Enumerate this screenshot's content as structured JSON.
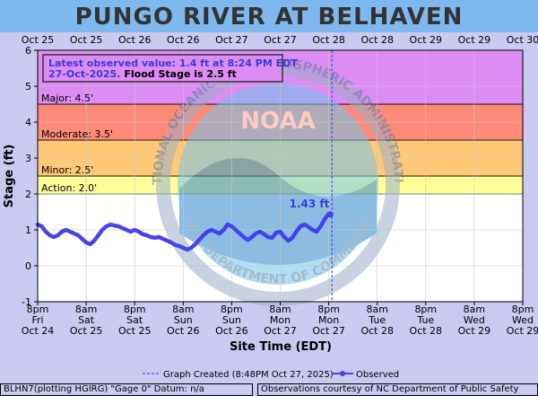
{
  "chart_data": {
    "type": "line",
    "title": "PUNGO RIVER AT BELHAVEN",
    "xlabel": "Site Time (EDT)",
    "ylabel": "Stage (ft)",
    "ylim": [
      -1,
      6
    ],
    "yticks": [
      -1,
      0,
      1,
      2,
      3,
      4,
      5,
      6
    ],
    "x_range": [
      "2025-10-24T20:00",
      "2025-10-29T20:00"
    ],
    "top_ticks": [
      "Oct 25",
      "Oct 25",
      "Oct 26",
      "Oct 26",
      "Oct 27",
      "Oct 27",
      "Oct 28",
      "Oct 28",
      "Oct 29",
      "Oct 29",
      "Oct 30"
    ],
    "bottom_ticks": [
      {
        "time": "8pm",
        "day": "Fri",
        "date": "Oct 24"
      },
      {
        "time": "8am",
        "day": "Sat",
        "date": "Oct 25"
      },
      {
        "time": "8pm",
        "day": "Sat",
        "date": "Oct 25"
      },
      {
        "time": "8am",
        "day": "Sun",
        "date": "Oct 26"
      },
      {
        "time": "8pm",
        "day": "Sun",
        "date": "Oct 26"
      },
      {
        "time": "8am",
        "day": "Mon",
        "date": "Oct 27"
      },
      {
        "time": "8pm",
        "day": "Mon",
        "date": "Oct 27"
      },
      {
        "time": "8am",
        "day": "Tue",
        "date": "Oct 28"
      },
      {
        "time": "8pm",
        "day": "Tue",
        "date": "Oct 28"
      },
      {
        "time": "8am",
        "day": "Wed",
        "date": "Oct 29"
      },
      {
        "time": "8pm",
        "day": "Wed",
        "date": "Oct 29"
      }
    ],
    "flood_categories": [
      {
        "label": "Action: 2.0'",
        "from": 2.0,
        "to": 2.5,
        "color": "#ffff99"
      },
      {
        "label": "Minor: 2.5'",
        "from": 2.5,
        "to": 3.5,
        "color": "#ffc877"
      },
      {
        "label": "Moderate: 3.5'",
        "from": 3.5,
        "to": 4.5,
        "color": "#ff8a7a"
      },
      {
        "label": "Major: 4.5'",
        "from": 4.5,
        "to": 6.0,
        "color": "#dd8cf4"
      }
    ],
    "below_action_color": "#ffffff",
    "series": [
      {
        "name": "Observed",
        "color": "#4444ee",
        "points": [
          [
            "2025-10-24T20:00",
            1.15
          ],
          [
            "2025-10-24T21:00",
            1.1
          ],
          [
            "2025-10-24T22:00",
            0.95
          ],
          [
            "2025-10-24T23:00",
            0.85
          ],
          [
            "2025-10-25T00:00",
            0.8
          ],
          [
            "2025-10-25T01:00",
            0.85
          ],
          [
            "2025-10-25T02:00",
            0.95
          ],
          [
            "2025-10-25T03:00",
            1.0
          ],
          [
            "2025-10-25T04:00",
            0.95
          ],
          [
            "2025-10-25T05:00",
            0.9
          ],
          [
            "2025-10-25T06:00",
            0.85
          ],
          [
            "2025-10-25T07:00",
            0.75
          ],
          [
            "2025-10-25T08:00",
            0.65
          ],
          [
            "2025-10-25T09:00",
            0.6
          ],
          [
            "2025-10-25T10:00",
            0.7
          ],
          [
            "2025-10-25T11:00",
            0.85
          ],
          [
            "2025-10-25T12:00",
            1.0
          ],
          [
            "2025-10-25T13:00",
            1.1
          ],
          [
            "2025-10-25T14:00",
            1.15
          ],
          [
            "2025-10-25T15:00",
            1.12
          ],
          [
            "2025-10-25T16:00",
            1.1
          ],
          [
            "2025-10-25T17:00",
            1.05
          ],
          [
            "2025-10-25T18:00",
            1.0
          ],
          [
            "2025-10-25T19:00",
            0.95
          ],
          [
            "2025-10-25T20:00",
            1.0
          ],
          [
            "2025-10-25T21:00",
            0.95
          ],
          [
            "2025-10-25T22:00",
            0.88
          ],
          [
            "2025-10-25T23:00",
            0.85
          ],
          [
            "2025-10-26T00:00",
            0.8
          ],
          [
            "2025-10-26T01:00",
            0.78
          ],
          [
            "2025-10-26T02:00",
            0.8
          ],
          [
            "2025-10-26T03:00",
            0.75
          ],
          [
            "2025-10-26T04:00",
            0.7
          ],
          [
            "2025-10-26T05:00",
            0.65
          ],
          [
            "2025-10-26T06:00",
            0.58
          ],
          [
            "2025-10-26T07:00",
            0.55
          ],
          [
            "2025-10-26T08:00",
            0.5
          ],
          [
            "2025-10-26T09:00",
            0.45
          ],
          [
            "2025-10-26T10:00",
            0.5
          ],
          [
            "2025-10-26T11:00",
            0.6
          ],
          [
            "2025-10-26T12:00",
            0.72
          ],
          [
            "2025-10-26T13:00",
            0.85
          ],
          [
            "2025-10-26T14:00",
            0.95
          ],
          [
            "2025-10-26T15:00",
            1.0
          ],
          [
            "2025-10-26T16:00",
            0.95
          ],
          [
            "2025-10-26T17:00",
            0.9
          ],
          [
            "2025-10-26T18:00",
            1.0
          ],
          [
            "2025-10-26T19:00",
            1.15
          ],
          [
            "2025-10-26T20:00",
            1.1
          ],
          [
            "2025-10-26T21:00",
            1.0
          ],
          [
            "2025-10-26T22:00",
            0.9
          ],
          [
            "2025-10-26T23:00",
            0.8
          ],
          [
            "2025-10-27T00:00",
            0.72
          ],
          [
            "2025-10-27T01:00",
            0.8
          ],
          [
            "2025-10-27T02:00",
            0.9
          ],
          [
            "2025-10-27T03:00",
            0.95
          ],
          [
            "2025-10-27T04:00",
            0.88
          ],
          [
            "2025-10-27T05:00",
            0.8
          ],
          [
            "2025-10-27T06:00",
            0.78
          ],
          [
            "2025-10-27T07:00",
            0.92
          ],
          [
            "2025-10-27T08:00",
            0.95
          ],
          [
            "2025-10-27T09:00",
            0.8
          ],
          [
            "2025-10-27T10:00",
            0.7
          ],
          [
            "2025-10-27T11:00",
            0.78
          ],
          [
            "2025-10-27T12:00",
            0.95
          ],
          [
            "2025-10-27T13:00",
            1.1
          ],
          [
            "2025-10-27T14:00",
            1.15
          ],
          [
            "2025-10-27T15:00",
            1.08
          ],
          [
            "2025-10-27T16:00",
            1.0
          ],
          [
            "2025-10-27T17:00",
            0.95
          ],
          [
            "2025-10-27T18:00",
            1.1
          ],
          [
            "2025-10-27T19:00",
            1.3
          ],
          [
            "2025-10-27T20:00",
            1.45
          ],
          [
            "2025-10-27T20:24",
            1.43
          ]
        ]
      }
    ],
    "last_value_label": "1.43 ft",
    "graph_created_time": "2025-10-27T20:48",
    "latest_observation": {
      "line1": "Latest observed value: 1.4 ft at 8:24 PM EDT",
      "line2_date": "27-Oct-2025.",
      "line2_flood": "Flood Stage is 2.5 ft"
    },
    "legend": {
      "graph_created": "Graph Created (8:48PM Oct 27, 2025)",
      "observed": "Observed"
    },
    "watermark": {
      "text_top": "NATIONAL OCEANIC AND ATMOSPHERIC ADMINISTRATION",
      "text_bottom": "U.S. DEPARTMENT OF COMMERCE",
      "center": "NOAA"
    },
    "colors": {
      "background": "#c9c9f2",
      "title_band": "#7fb8ee",
      "observed": "#4444ee"
    }
  },
  "footer": {
    "left": "BLHN7(plotting HGIRG) \"Gage 0\" Datum: n/a",
    "right": "Observations courtesy of NC Department of Public Safety"
  }
}
